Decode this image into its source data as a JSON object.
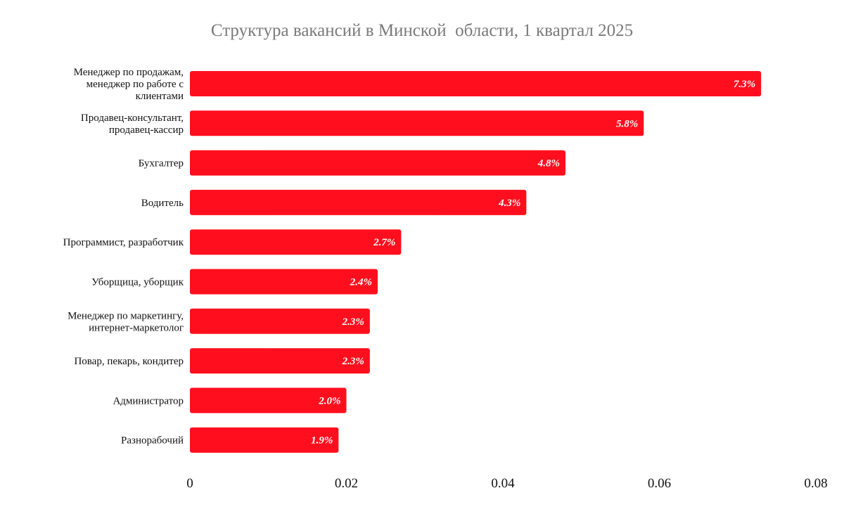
{
  "chart_data": {
    "type": "bar",
    "orientation": "horizontal",
    "title": "Структура вакансий в Минской  области, 1 квартал 2025",
    "xlabel": "",
    "ylabel": "",
    "xlim": [
      0,
      0.08
    ],
    "x_ticks": [
      {
        "value": 0,
        "label": "0"
      },
      {
        "value": 0.02,
        "label": "0.02"
      },
      {
        "value": 0.04,
        "label": "0.04"
      },
      {
        "value": 0.06,
        "label": "0.06"
      },
      {
        "value": 0.08,
        "label": "0.08"
      }
    ],
    "grid": false,
    "bar_color": "#ff0f1e",
    "categories": [
      [
        "Менеджер по продажам,",
        "менеджер по работе с",
        "клиентами"
      ],
      [
        "Продавец-консультант,",
        "продавец-кассир"
      ],
      [
        "Бухгалтер"
      ],
      [
        "Водитель"
      ],
      [
        "Программист, разработчик"
      ],
      [
        "Уборщица, уборщик"
      ],
      [
        "Менеджер по маркетингу,",
        "интернет-маркетолог"
      ],
      [
        "Повар, пекарь, кондитер"
      ],
      [
        "Администратор"
      ],
      [
        "Разнорабочий"
      ]
    ],
    "values": [
      0.073,
      0.058,
      0.048,
      0.043,
      0.027,
      0.024,
      0.023,
      0.023,
      0.02,
      0.019
    ],
    "value_labels": [
      "7.3%",
      "5.8%",
      "4.8%",
      "4.3%",
      "2.7%",
      "2.4%",
      "2.3%",
      "2.3%",
      "2.0%",
      "1.9%"
    ]
  }
}
